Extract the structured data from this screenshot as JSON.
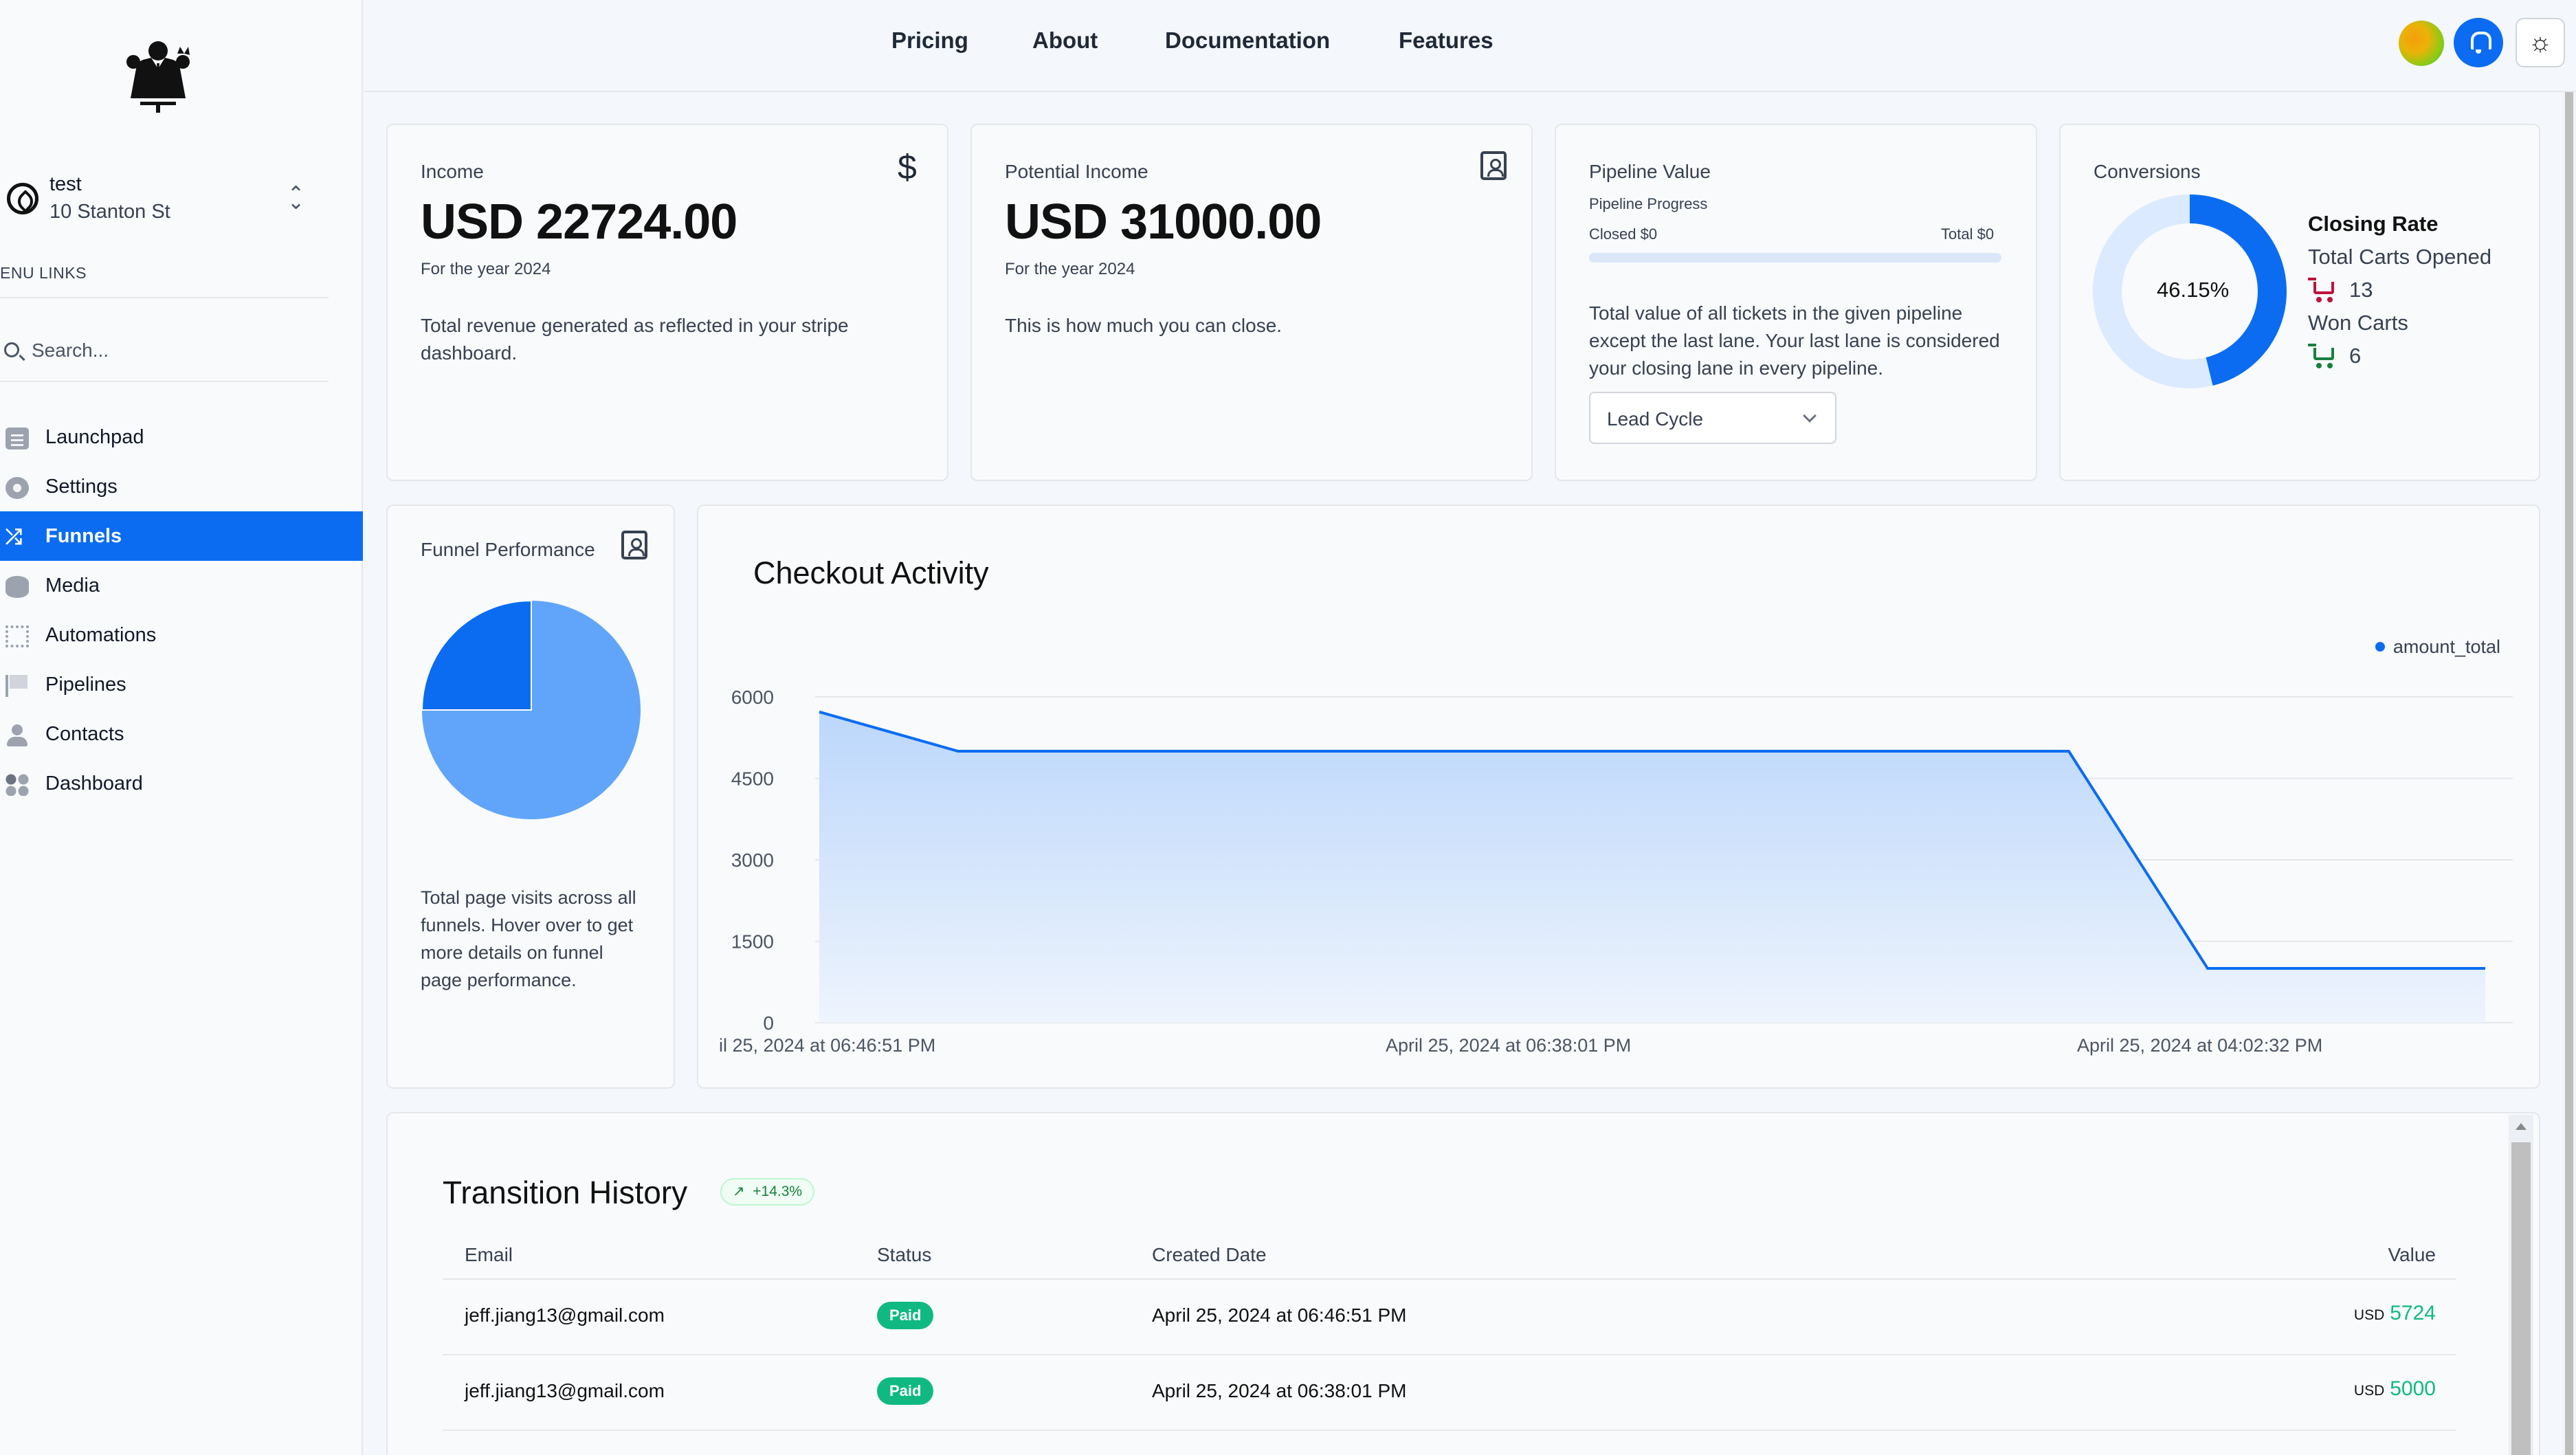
{
  "sidebar": {
    "workspace_name": "test",
    "workspace_address": "10 Stanton St",
    "menu_heading": "ENU LINKS",
    "search_placeholder": "Search...",
    "items": [
      {
        "label": "Launchpad",
        "icon": "clipboard-icon"
      },
      {
        "label": "Settings",
        "icon": "gear-icon"
      },
      {
        "label": "Funnels",
        "icon": "shuffle-icon",
        "active": true
      },
      {
        "label": "Media",
        "icon": "database-icon"
      },
      {
        "label": "Automations",
        "icon": "chip-icon"
      },
      {
        "label": "Pipelines",
        "icon": "flag-icon"
      },
      {
        "label": "Contacts",
        "icon": "user-icon"
      },
      {
        "label": "Dashboard",
        "icon": "grid-icon"
      }
    ]
  },
  "topnav": {
    "links": [
      "Pricing",
      "About",
      "Documentation",
      "Features"
    ]
  },
  "income": {
    "label": "Income",
    "value": "USD 22724.00",
    "period": "For the year 2024",
    "description": "Total revenue generated as reflected in your stripe dashboard."
  },
  "potential_income": {
    "label": "Potential Income",
    "value": "USD 31000.00",
    "period": "For the year 2024",
    "description": "This is how much you can close."
  },
  "pipeline": {
    "label": "Pipeline Value",
    "progress_label": "Pipeline Progress",
    "closed": "Closed $0",
    "total": "Total $0",
    "progress_fraction": 0,
    "description": "Total value of all tickets in the given pipeline except the last lane. Your last lane is considered your closing lane in every pipeline.",
    "selected_pipeline": "Lead Cycle"
  },
  "conversions": {
    "label": "Conversions",
    "percent_text": "46.15%",
    "percent_value": 46.15,
    "closing_rate_title": "Closing Rate",
    "total_carts_label": "Total Carts Opened",
    "total_carts_value": "13",
    "won_carts_label": "Won Carts",
    "won_carts_value": "6"
  },
  "funnel_performance": {
    "label": "Funnel Performance",
    "description": "Total page visits across all funnels. Hover over to get more details on funnel page performance.",
    "colors": [
      "#0b6cf2",
      "#60a5fa"
    ]
  },
  "chart_data": {
    "type": "area",
    "title": "Checkout Activity",
    "series": [
      {
        "name": "amount_total",
        "color": "#0b6cf2",
        "values": [
          5724,
          5000,
          5000,
          5000,
          5000,
          5000,
          5000,
          5000,
          5000,
          5000,
          1000,
          1000,
          1000
        ]
      }
    ],
    "x_tick_labels": [
      "il 25, 2024 at 06:46:51 PM",
      "April 25, 2024 at 06:38:01 PM",
      "April 25, 2024 at 04:02:32 PM"
    ],
    "y_ticks": [
      "6000",
      "4500",
      "3000",
      "1500",
      "0"
    ],
    "ylim": [
      0,
      6000
    ],
    "grid": true,
    "legend": "top-right"
  },
  "transition_history": {
    "title": "Transition History",
    "trend": "+14.3%",
    "columns": [
      "Email",
      "Status",
      "Created Date",
      "Value"
    ],
    "rows": [
      {
        "email": "jeff.jiang13@gmail.com",
        "status": "Paid",
        "date": "April 25, 2024 at 06:46:51 PM",
        "currency": "USD",
        "value": "5724"
      },
      {
        "email": "jeff.jiang13@gmail.com",
        "status": "Paid",
        "date": "April 25, 2024 at 06:38:01 PM",
        "currency": "USD",
        "value": "5000"
      }
    ]
  }
}
